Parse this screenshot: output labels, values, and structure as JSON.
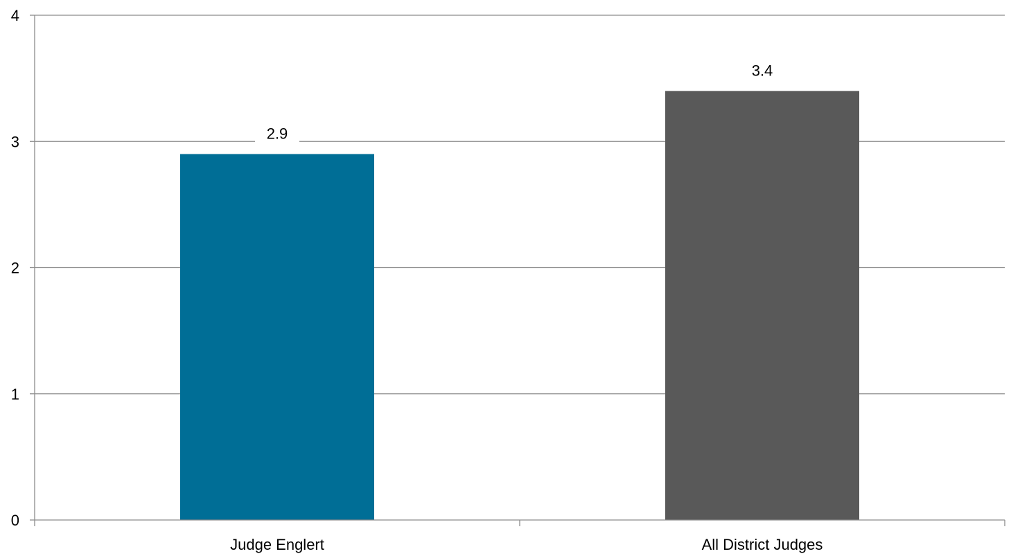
{
  "chart_data": {
    "type": "bar",
    "title": "",
    "xlabel": "",
    "ylabel": "",
    "categories": [
      "Judge Englert",
      "All District Judges"
    ],
    "values": [
      2.9,
      3.4
    ],
    "data_labels": [
      "2.9",
      "3.4"
    ],
    "colors": [
      "#006e96",
      "#595959"
    ],
    "ylim": [
      0,
      4
    ],
    "yticks": [
      0,
      1,
      2,
      3,
      4
    ],
    "ytick_labels": [
      "0",
      "1",
      "2",
      "3",
      "4"
    ],
    "grid": true,
    "gridline_color": "#8c8c8c",
    "legend": "none"
  }
}
